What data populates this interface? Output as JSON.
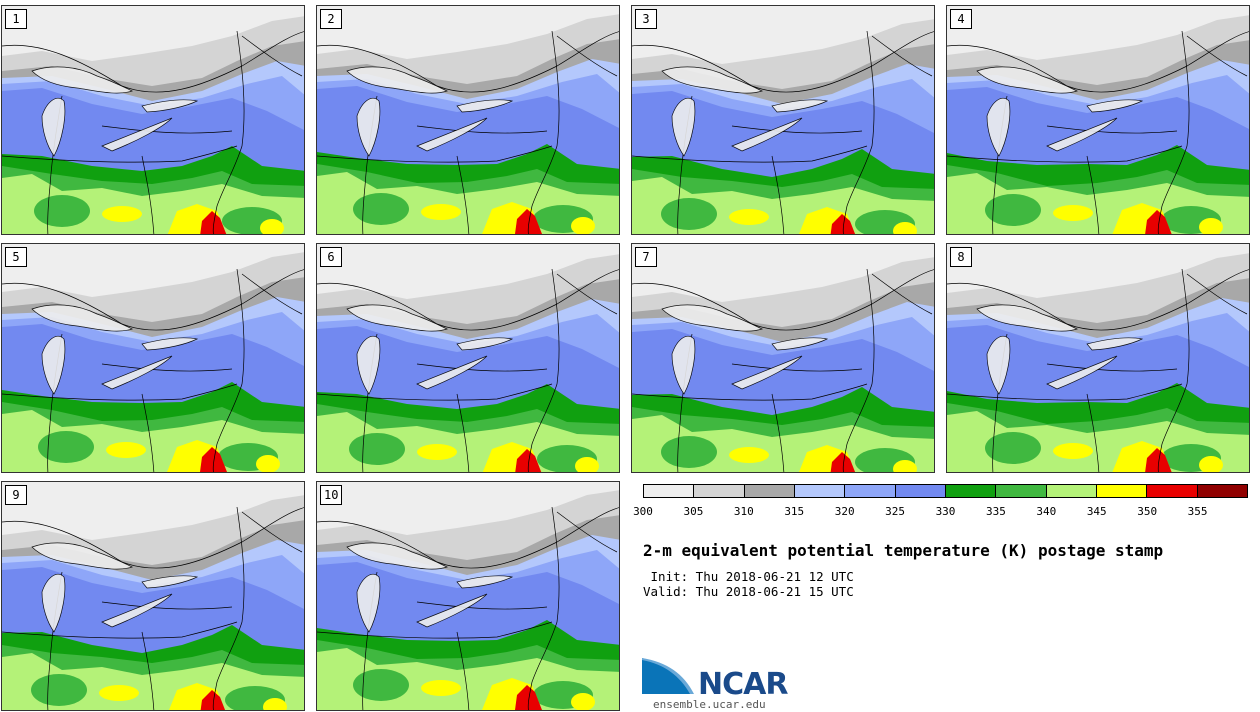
{
  "panels": [
    {
      "label": "1",
      "variant": 0
    },
    {
      "label": "2",
      "variant": 1
    },
    {
      "label": "3",
      "variant": 2
    },
    {
      "label": "4",
      "variant": 3
    },
    {
      "label": "5",
      "variant": 1
    },
    {
      "label": "6",
      "variant": 0
    },
    {
      "label": "7",
      "variant": 2
    },
    {
      "label": "8",
      "variant": 3
    },
    {
      "label": "9",
      "variant": 2
    },
    {
      "label": "10",
      "variant": 1
    }
  ],
  "colorbar": {
    "ticks": [
      "300",
      "305",
      "310",
      "315",
      "320",
      "325",
      "330",
      "335",
      "340",
      "345",
      "350",
      "355"
    ],
    "colors": [
      "#eeeeee",
      "#d4d4d4",
      "#a8a8a8",
      "#b4c8fc",
      "#8ea6f8",
      "#7289f0",
      "#10a010",
      "#40b840",
      "#b4f278",
      "#ffff00",
      "#e80000",
      "#900000"
    ]
  },
  "title": "2-m equivalent potential temperature (K) postage stamp",
  "init_line": " Init: Thu 2018-06-21 12 UTC",
  "valid_line": "Valid: Thu 2018-06-21 15 UTC",
  "logo": {
    "text": "NCAR",
    "url": "ensemble.ucar.edu"
  }
}
